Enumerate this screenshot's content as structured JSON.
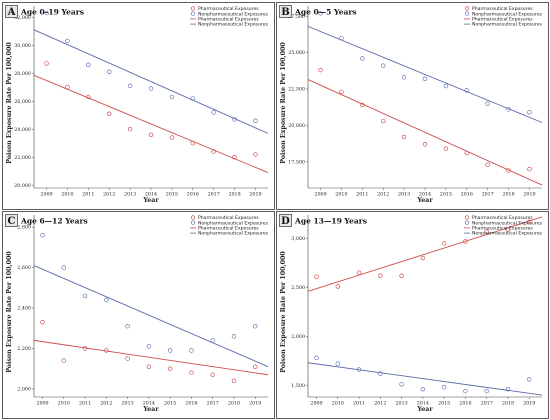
{
  "colors": {
    "pharmaceutical": "#c8383b",
    "nonpharmaceutical": "#4a63b0",
    "pharmaceutical_line": "#cf4b4b",
    "nonpharmaceutical_line": "#5a6aa6",
    "box_border": "#333333",
    "letter_box_fill": "#e8e8e8"
  },
  "chart_data": [
    {
      "type": "scatter",
      "panel": "A",
      "title": "Age 0–19 Years",
      "xlabel": "Year",
      "ylabel": "Poison Exposure Rate Per 100,000",
      "xlim": [
        2008.4,
        2019.6
      ],
      "ylim": [
        19800,
        32800
      ],
      "xticks": [
        2009,
        2010,
        2011,
        2012,
        2013,
        2014,
        2015,
        2016,
        2017,
        2018,
        2019
      ],
      "yticks": [
        20000,
        22000,
        24000,
        26000,
        28000,
        30000,
        32000
      ],
      "ytick_labels": [
        "20,000",
        "22,000",
        "24,000",
        "26,000",
        "28,000",
        "30,000",
        "32,000"
      ],
      "legend": [
        "Pharmaceutical Exposures",
        "Nonpharmaceutical Exposures",
        "Pharmaceutical Exposures",
        "Nonpharmaceutical Exposures"
      ],
      "series": [
        {
          "category": "pharmaceutical",
          "kind": "points",
          "x": [
            2009,
            2010,
            2011,
            2012,
            2013,
            2014,
            2015,
            2016,
            2017,
            2018,
            2019
          ],
          "y": [
            28700,
            27000,
            26300,
            25100,
            24000,
            23600,
            23400,
            23000,
            22400,
            22000,
            22200
          ]
        },
        {
          "category": "nonpharmaceutical",
          "kind": "points",
          "x": [
            2009,
            2010,
            2011,
            2012,
            2013,
            2014,
            2015,
            2016,
            2017,
            2018,
            2019
          ],
          "y": [
            32300,
            30300,
            28600,
            28100,
            27100,
            26900,
            26300,
            26200,
            25200,
            24700,
            24600
          ]
        },
        {
          "category": "pharmaceutical",
          "kind": "trend",
          "x": [
            2008.4,
            2019.6
          ],
          "y": [
            27850,
            20900
          ]
        },
        {
          "category": "nonpharmaceutical",
          "kind": "trend",
          "x": [
            2008.4,
            2019.6
          ],
          "y": [
            31100,
            23700
          ]
        }
      ]
    },
    {
      "type": "scatter",
      "panel": "B",
      "title": "Age 0—5 Years",
      "xlabel": "Year",
      "ylabel": "Poison Exposure Rate Per 100,000",
      "xlim": [
        2008.4,
        2019.6
      ],
      "ylim": [
        15700,
        28200
      ],
      "xticks": [
        2009,
        2010,
        2011,
        2012,
        2013,
        2014,
        2015,
        2016,
        2017,
        2018,
        2019
      ],
      "yticks": [
        17500,
        20000,
        22500,
        25000,
        27500
      ],
      "ytick_labels": [
        "17,500",
        "20,000",
        "22,500",
        "25,000",
        "27,500"
      ],
      "legend": [
        "Pharmaceutical Exposures",
        "Nonpharmaceutical Exposures",
        "Pharmaceutical Exposures",
        "Nonpharmaceutical Exposures"
      ],
      "series": [
        {
          "category": "pharmaceutical",
          "kind": "points",
          "x": [
            2009,
            2010,
            2011,
            2012,
            2013,
            2014,
            2015,
            2016,
            2017,
            2018,
            2019
          ],
          "y": [
            23800,
            22300,
            21400,
            20300,
            19200,
            18700,
            18400,
            18100,
            17300,
            16900,
            17000
          ]
        },
        {
          "category": "nonpharmaceutical",
          "kind": "points",
          "x": [
            2009,
            2010,
            2011,
            2012,
            2013,
            2014,
            2015,
            2016,
            2017,
            2018,
            2019
          ],
          "y": [
            27700,
            26000,
            24600,
            24100,
            23300,
            23200,
            22700,
            22400,
            21500,
            21100,
            20900
          ]
        },
        {
          "category": "pharmaceutical",
          "kind": "trend",
          "x": [
            2008.4,
            2019.6
          ],
          "y": [
            23150,
            15900
          ]
        },
        {
          "category": "nonpharmaceutical",
          "kind": "trend",
          "x": [
            2008.4,
            2019.6
          ],
          "y": [
            26800,
            20200
          ]
        }
      ]
    },
    {
      "type": "scatter",
      "panel": "C",
      "title": "Age 6—12 Years",
      "xlabel": "Year",
      "ylabel": "Poison Exposure Rate Per 100,000",
      "xlim": [
        2008.6,
        2019.6
      ],
      "ylim": [
        1960,
        2860
      ],
      "xticks": [
        2009,
        2010,
        2011,
        2012,
        2013,
        2014,
        2015,
        2016,
        2017,
        2018,
        2019
      ],
      "yticks": [
        2000,
        2200,
        2400,
        2600,
        2800
      ],
      "ytick_labels": [
        "2,000",
        "2,200",
        "2,400",
        "2,600",
        "2,800"
      ],
      "legend": [
        "Pharmaceutical Exposures",
        "Nonpharmaceutical Exposures",
        "Pharmaceutical Exposures",
        "Nonpharmaceutical Exposures"
      ],
      "series": [
        {
          "category": "pharmaceutical",
          "kind": "points",
          "x": [
            2009,
            2010,
            2011,
            2012,
            2013,
            2014,
            2015,
            2016,
            2017,
            2018,
            2019
          ],
          "y": [
            2330,
            2140,
            2200,
            2190,
            2150,
            2110,
            2100,
            2080,
            2070,
            2040,
            2110
          ]
        },
        {
          "category": "nonpharmaceutical",
          "kind": "points",
          "x": [
            2009,
            2010,
            2011,
            2012,
            2013,
            2014,
            2015,
            2016,
            2017,
            2018,
            2019
          ],
          "y": [
            2760,
            2600,
            2460,
            2440,
            2310,
            2210,
            2190,
            2190,
            2240,
            2260,
            2310
          ]
        },
        {
          "category": "pharmaceutical",
          "kind": "trend",
          "x": [
            2008.6,
            2019.6
          ],
          "y": [
            2240,
            2070
          ]
        },
        {
          "category": "nonpharmaceutical",
          "kind": "trend",
          "x": [
            2008.6,
            2019.6
          ],
          "y": [
            2610,
            2110
          ]
        }
      ]
    },
    {
      "type": "scatter",
      "panel": "D",
      "title": "Age 13—19 Years",
      "xlabel": "Year",
      "ylabel": "Poison Exposure Rate Per 100,000",
      "xlim": [
        2008.6,
        2019.6
      ],
      "ylim": [
        1380,
        3240
      ],
      "xticks": [
        2009,
        2010,
        2011,
        2012,
        2013,
        2014,
        2015,
        2016,
        2017,
        2018,
        2019
      ],
      "yticks": [
        1500,
        2000,
        2500,
        3000
      ],
      "ytick_labels": [
        "1,500",
        "2,000",
        "2,500",
        "3,000"
      ],
      "legend": [
        "Pharmaceutical Exposures",
        "Nonpharmaceutical Exposures",
        "Pharmaceutical Exposures",
        "Nonpharmaceutical Exposures"
      ],
      "series": [
        {
          "category": "pharmaceutical",
          "kind": "points",
          "x": [
            2009,
            2010,
            2011,
            2012,
            2013,
            2014,
            2015,
            2016,
            2017,
            2018,
            2019
          ],
          "y": [
            2610,
            2510,
            2650,
            2620,
            2620,
            2800,
            2950,
            2970,
            3070,
            3090,
            3170
          ]
        },
        {
          "category": "nonpharmaceutical",
          "kind": "points",
          "x": [
            2009,
            2010,
            2011,
            2012,
            2013,
            2014,
            2015,
            2016,
            2017,
            2018,
            2019
          ],
          "y": [
            1780,
            1720,
            1660,
            1620,
            1510,
            1460,
            1480,
            1440,
            1440,
            1460,
            1560
          ]
        },
        {
          "category": "pharmaceutical",
          "kind": "trend",
          "x": [
            2008.6,
            2019.6
          ],
          "y": [
            2460,
            3220
          ]
        },
        {
          "category": "nonpharmaceutical",
          "kind": "trend",
          "x": [
            2008.6,
            2019.6
          ],
          "y": [
            1730,
            1400
          ]
        }
      ]
    }
  ]
}
